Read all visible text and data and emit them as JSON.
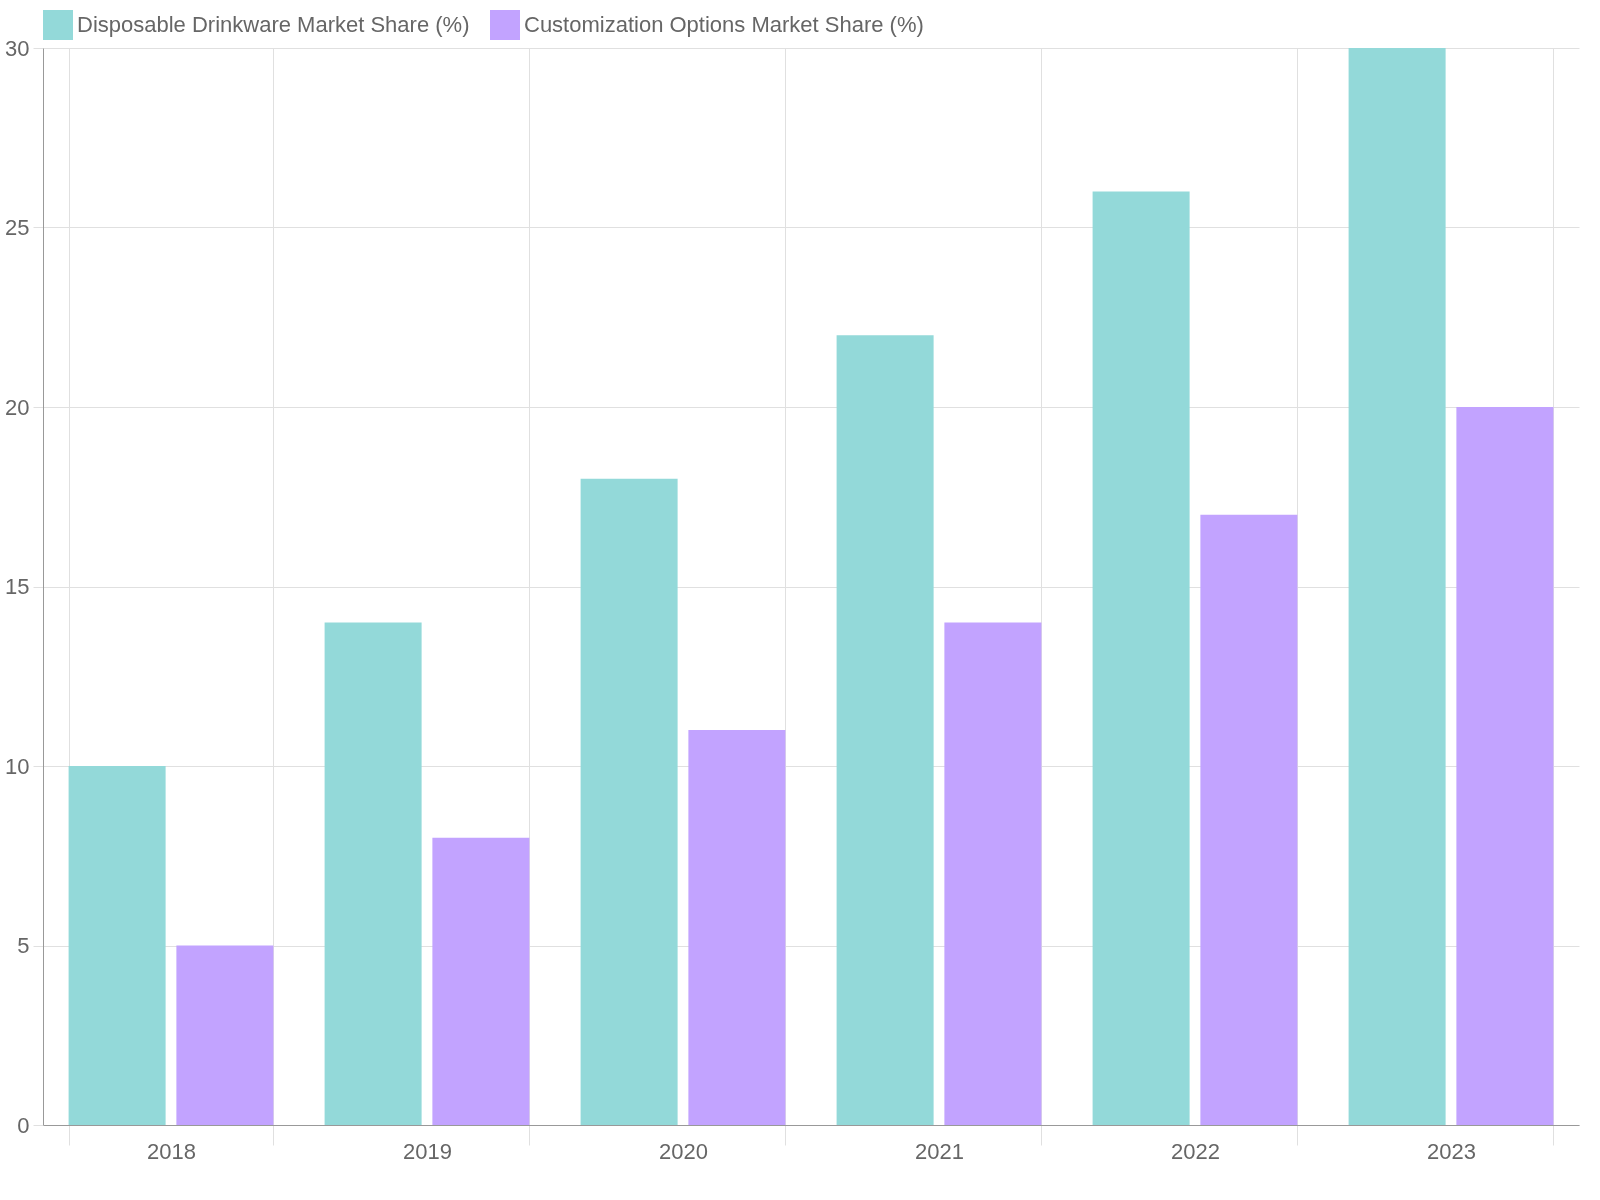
{
  "chart_data": {
    "type": "bar",
    "categories": [
      "2018",
      "2019",
      "2020",
      "2021",
      "2022",
      "2023"
    ],
    "series": [
      {
        "name": "Disposable Drinkware Market Share (%)",
        "color": "#93d9d9",
        "values": [
          10,
          14,
          18,
          22,
          26,
          30
        ]
      },
      {
        "name": "Customization Options Market Share (%)",
        "color": "#c2a3ff",
        "values": [
          5,
          8,
          11,
          14,
          17,
          20
        ]
      }
    ],
    "ylim": [
      0,
      30
    ],
    "yticks": [
      0,
      5,
      10,
      15,
      20,
      25,
      30
    ],
    "grid": true,
    "legend": "top"
  }
}
